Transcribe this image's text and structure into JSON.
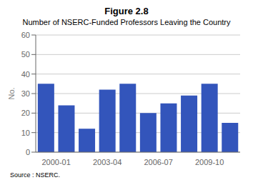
{
  "chart_data": {
    "type": "bar",
    "title": "Figure 2.8",
    "subtitle": "Number of NSERC-Funded Professors Leaving the Country",
    "annotation": "Source : NSERC.",
    "y_label": "No.",
    "categories": [
      "2000-01",
      null,
      "2003-04",
      null,
      null,
      "2006-07",
      null,
      "2009-10",
      null,
      null
    ],
    "values": [
      35,
      24,
      12,
      32,
      35,
      20,
      25,
      29,
      35,
      15
    ],
    "color": "#3355bb",
    "ylim": [
      0,
      60
    ],
    "yticks": [
      0,
      10,
      20,
      30,
      40,
      50,
      60
    ],
    "grid": true
  }
}
